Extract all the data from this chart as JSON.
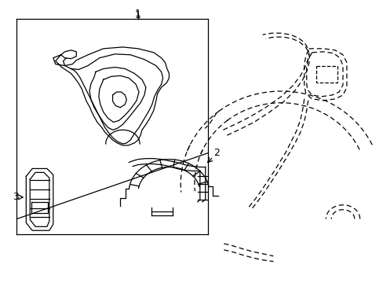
{
  "background_color": "#ffffff",
  "line_color": "#000000",
  "label_1": "1",
  "label_2": "2",
  "label_3": "3",
  "figsize": [
    4.89,
    3.6
  ],
  "dpi": 100
}
